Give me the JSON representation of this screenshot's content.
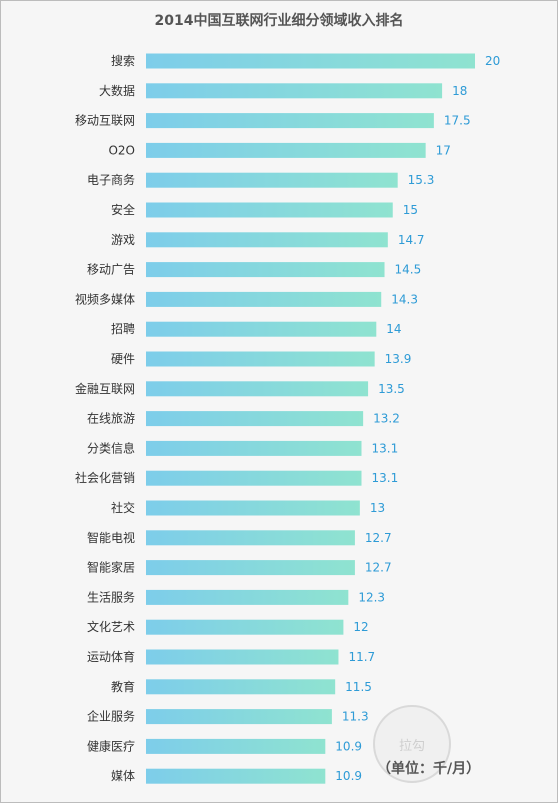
{
  "chart_data": {
    "type": "bar",
    "orientation": "horizontal",
    "title": "2014中国互联网行业细分领域收入排名",
    "unit_note": "（单位：千/月）",
    "categories": [
      "搜索",
      "大数据",
      "移动互联网",
      "O2O",
      "电子商务",
      "安全",
      "游戏",
      "移动广告",
      "视频多媒体",
      "招聘",
      "硬件",
      "金融互联网",
      "在线旅游",
      "分类信息",
      "社会化营销",
      "社交",
      "智能电视",
      "智能家居",
      "生活服务",
      "文化艺术",
      "运动体育",
      "教育",
      "企业服务",
      "健康医疗",
      "媒体"
    ],
    "values": [
      20,
      18,
      17.5,
      17,
      15.3,
      15,
      14.7,
      14.5,
      14.3,
      14,
      13.9,
      13.5,
      13.2,
      13.1,
      13.1,
      13,
      12.7,
      12.7,
      12.3,
      12,
      11.7,
      11.5,
      11.3,
      10.9,
      10.9
    ],
    "value_labels": [
      "20",
      "18",
      "17.5",
      "17",
      "15.3",
      "15",
      "14.7",
      "14.5",
      "14.3",
      "14",
      "13.9",
      "13.5",
      "13.2",
      "13.1",
      "13.1",
      "13",
      "12.7",
      "12.7",
      "12.3",
      "12",
      "11.7",
      "11.5",
      "11.3",
      "10.9",
      "10.9"
    ],
    "xlim": [
      0,
      20
    ],
    "grid": false,
    "legend": "none",
    "colors": {
      "bar_start": "#7dcdea",
      "bar_end": "#8fe3d0",
      "value_label": "#2e9bd6",
      "category_label": "#333333",
      "title": "#555555",
      "background": "#f6f6f6"
    }
  },
  "watermark": {
    "text": "拉勾"
  }
}
